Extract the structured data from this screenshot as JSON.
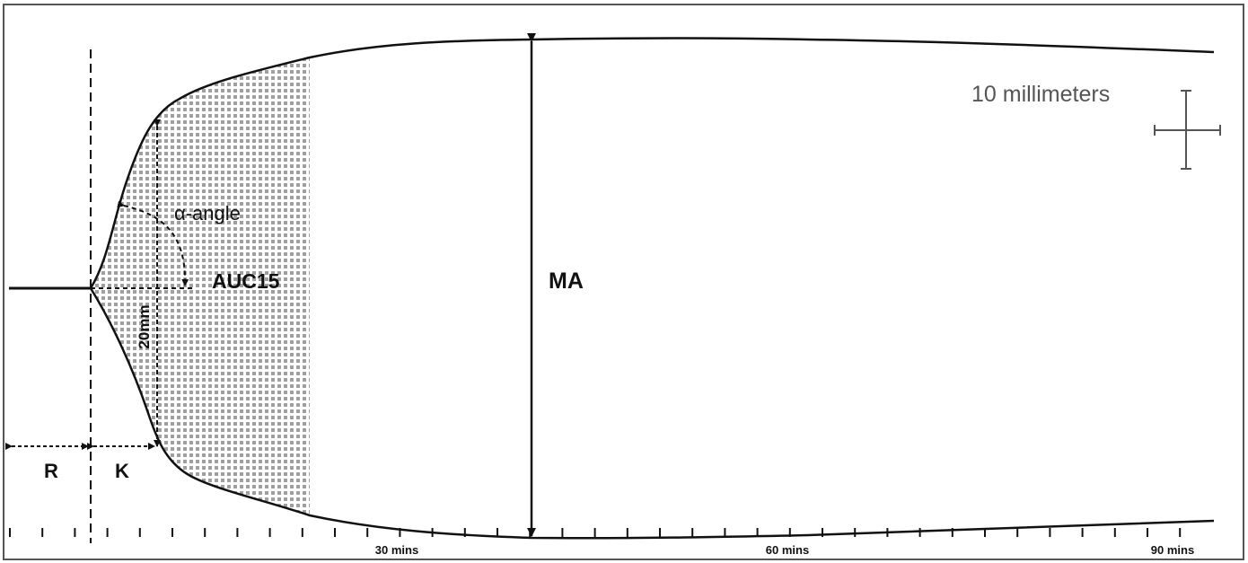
{
  "diagram": {
    "labels": {
      "r": "R",
      "k": "K",
      "alpha": "α-angle",
      "auc": "AUC15",
      "ma": "MA",
      "twenty_mm": "20mm",
      "scale": "10 millimeters"
    },
    "time_axis": {
      "labels": [
        "30 mins",
        "60 mins",
        "90 mins"
      ]
    },
    "colors": {
      "trace": "#111111",
      "dots": "#9a9a9a",
      "scale": "#555555"
    }
  }
}
